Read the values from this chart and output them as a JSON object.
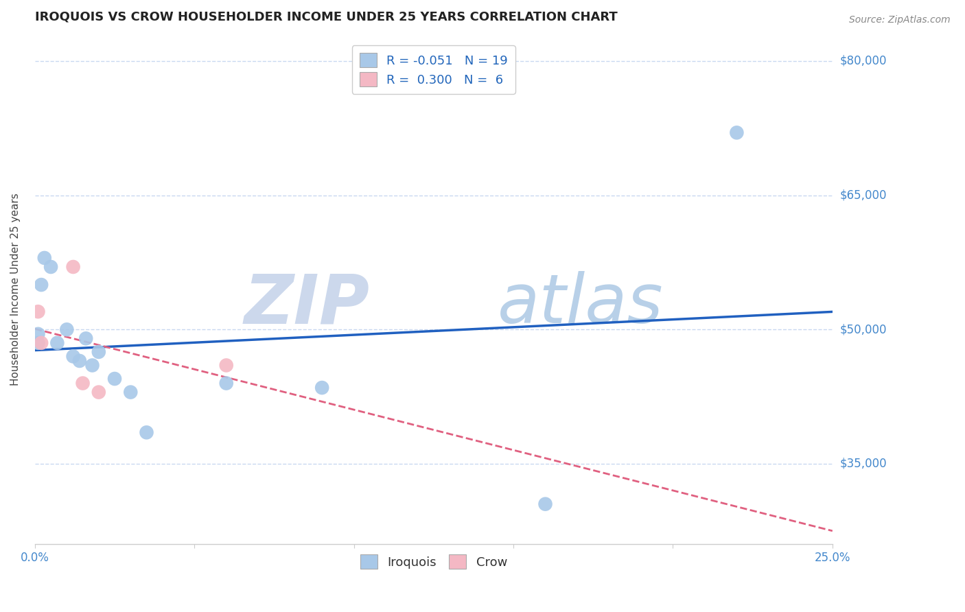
{
  "title": "IROQUOIS VS CROW HOUSEHOLDER INCOME UNDER 25 YEARS CORRELATION CHART",
  "source": "Source: ZipAtlas.com",
  "xlabel": "",
  "ylabel": "Householder Income Under 25 years",
  "xlim": [
    0.0,
    0.25
  ],
  "ylim": [
    26000,
    83000
  ],
  "ytick_positions": [
    35000,
    50000,
    65000,
    80000
  ],
  "ytick_labels": [
    "$35,000",
    "$50,000",
    "$65,000",
    "$80,000"
  ],
  "iroquois_R": -0.051,
  "iroquois_N": 19,
  "crow_R": 0.3,
  "crow_N": 6,
  "iroquois_color": "#a8c8e8",
  "crow_color": "#f4b8c4",
  "iroquois_line_color": "#2060c0",
  "crow_line_color": "#e06080",
  "iroquois_x": [
    0.001,
    0.001,
    0.002,
    0.003,
    0.005,
    0.007,
    0.01,
    0.012,
    0.014,
    0.016,
    0.018,
    0.02,
    0.025,
    0.03,
    0.035,
    0.06,
    0.09,
    0.16,
    0.22
  ],
  "iroquois_y": [
    49500,
    48500,
    55000,
    58000,
    57000,
    48500,
    50000,
    47000,
    46500,
    49000,
    46000,
    47500,
    44500,
    43000,
    38500,
    44000,
    43500,
    30500,
    72000
  ],
  "crow_x": [
    0.001,
    0.002,
    0.012,
    0.015,
    0.02,
    0.06
  ],
  "crow_y": [
    52000,
    48500,
    57000,
    44000,
    43000,
    46000
  ],
  "watermark_zip": "ZIP",
  "watermark_atlas": "atlas",
  "background_color": "#ffffff",
  "grid_color": "#c8d8f0",
  "title_fontsize": 13,
  "axis_label_fontsize": 11,
  "tick_fontsize": 12,
  "legend_fontsize": 13,
  "source_fontsize": 10
}
